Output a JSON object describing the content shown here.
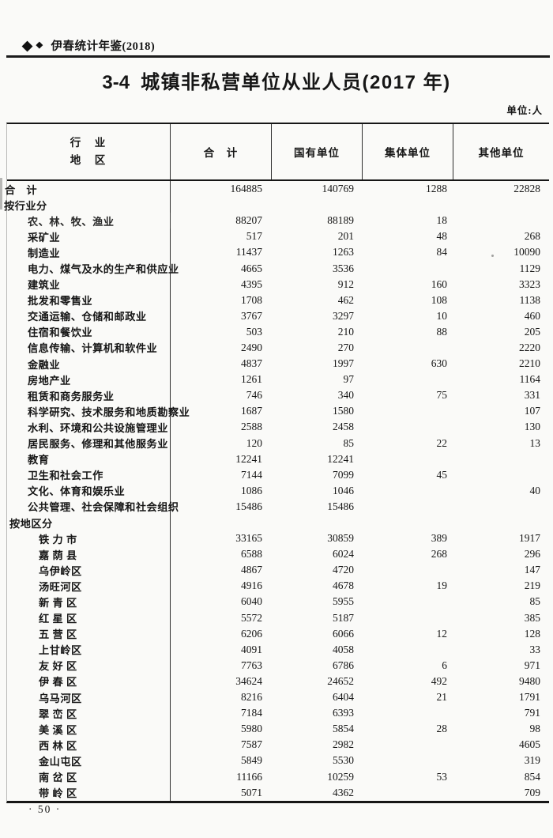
{
  "page": {
    "header": {
      "diamond_big": "◆",
      "diamond_small": "◆",
      "yearbook": "伊春统计年鉴(2018)"
    },
    "title": {
      "number": "3-4",
      "text": "城镇非私营单位从业人员(2017 年)"
    },
    "unit_label": "单位:人",
    "footer_page_number": "· 50 ·"
  },
  "table": {
    "row_header": {
      "line1": "行　业",
      "line2": "地　区"
    },
    "columns": [
      "合　计",
      "国有单位",
      "集体单位",
      "其他单位"
    ],
    "rows": [
      {
        "label": "合　计",
        "indent": 0,
        "values": [
          "164885",
          "140769",
          "1288",
          "22828"
        ]
      },
      {
        "label": "按行业分",
        "indent": 0,
        "values": [
          "",
          "",
          "",
          ""
        ]
      },
      {
        "label": "农、林、牧、渔业",
        "indent": 1,
        "values": [
          "88207",
          "88189",
          "18",
          ""
        ]
      },
      {
        "label": "采矿业",
        "indent": 1,
        "values": [
          "517",
          "201",
          "48",
          "268"
        ]
      },
      {
        "label": "制造业",
        "indent": 1,
        "values": [
          "11437",
          "1263",
          "84",
          "10090"
        ]
      },
      {
        "label": "电力、煤气及水的生产和供应业",
        "indent": 1,
        "values": [
          "4665",
          "3536",
          "",
          "1129"
        ]
      },
      {
        "label": "建筑业",
        "indent": 1,
        "values": [
          "4395",
          "912",
          "160",
          "3323"
        ]
      },
      {
        "label": "批发和零售业",
        "indent": 1,
        "values": [
          "1708",
          "462",
          "108",
          "1138"
        ]
      },
      {
        "label": "交通运输、仓储和邮政业",
        "indent": 1,
        "values": [
          "3767",
          "3297",
          "10",
          "460"
        ]
      },
      {
        "label": "住宿和餐饮业",
        "indent": 1,
        "values": [
          "503",
          "210",
          "88",
          "205"
        ]
      },
      {
        "label": "信息传输、计算机和软件业",
        "indent": 1,
        "values": [
          "2490",
          "270",
          "",
          "2220"
        ]
      },
      {
        "label": "金融业",
        "indent": 1,
        "values": [
          "4837",
          "1997",
          "630",
          "2210"
        ]
      },
      {
        "label": "房地产业",
        "indent": 1,
        "values": [
          "1261",
          "97",
          "",
          "1164"
        ]
      },
      {
        "label": "租赁和商务服务业",
        "indent": 1,
        "values": [
          "746",
          "340",
          "75",
          "331"
        ]
      },
      {
        "label": "科学研究、技术服务和地质勘察业",
        "indent": 1,
        "values": [
          "1687",
          "1580",
          "",
          "107"
        ]
      },
      {
        "label": "水利、环境和公共设施管理业",
        "indent": 1,
        "values": [
          "2588",
          "2458",
          "",
          "130"
        ]
      },
      {
        "label": "居民服务、修理和其他服务业",
        "indent": 1,
        "values": [
          "120",
          "85",
          "22",
          "13"
        ]
      },
      {
        "label": "教育",
        "indent": 1,
        "values": [
          "12241",
          "12241",
          "",
          ""
        ]
      },
      {
        "label": "卫生和社会工作",
        "indent": 1,
        "values": [
          "7144",
          "7099",
          "45",
          ""
        ]
      },
      {
        "label": "文化、体育和娱乐业",
        "indent": 1,
        "values": [
          "1086",
          "1046",
          "",
          "40"
        ]
      },
      {
        "label": "公共管理、社会保障和社会组织",
        "indent": 1,
        "values": [
          "15486",
          "15486",
          "",
          ""
        ]
      },
      {
        "label": "按地区分",
        "indent": 0,
        "values": [
          "",
          "",
          "",
          ""
        ]
      },
      {
        "label": "铁 力 市",
        "indent": 2,
        "values": [
          "33165",
          "30859",
          "389",
          "1917"
        ]
      },
      {
        "label": "嘉 荫 县",
        "indent": 2,
        "values": [
          "6588",
          "6024",
          "268",
          "296"
        ]
      },
      {
        "label": "乌伊岭区",
        "indent": 2,
        "values": [
          "4867",
          "4720",
          "",
          "147"
        ]
      },
      {
        "label": "汤旺河区",
        "indent": 2,
        "values": [
          "4916",
          "4678",
          "19",
          "219"
        ]
      },
      {
        "label": "新 青 区",
        "indent": 2,
        "values": [
          "6040",
          "5955",
          "",
          "85"
        ]
      },
      {
        "label": "红 星 区",
        "indent": 2,
        "values": [
          "5572",
          "5187",
          "",
          "385"
        ]
      },
      {
        "label": "五 营 区",
        "indent": 2,
        "values": [
          "6206",
          "6066",
          "12",
          "128"
        ]
      },
      {
        "label": "上甘岭区",
        "indent": 2,
        "values": [
          "4091",
          "4058",
          "",
          "33"
        ]
      },
      {
        "label": "友 好 区",
        "indent": 2,
        "values": [
          "7763",
          "6786",
          "6",
          "971"
        ]
      },
      {
        "label": "伊 春 区",
        "indent": 2,
        "values": [
          "34624",
          "24652",
          "492",
          "9480"
        ]
      },
      {
        "label": "乌马河区",
        "indent": 2,
        "values": [
          "8216",
          "6404",
          "21",
          "1791"
        ]
      },
      {
        "label": "翠 峦 区",
        "indent": 2,
        "values": [
          "7184",
          "6393",
          "",
          "791"
        ]
      },
      {
        "label": "美 溪 区",
        "indent": 2,
        "values": [
          "5980",
          "5854",
          "28",
          "98"
        ]
      },
      {
        "label": "西 林 区",
        "indent": 2,
        "values": [
          "7587",
          "2982",
          "",
          "4605"
        ]
      },
      {
        "label": "金山屯区",
        "indent": 2,
        "values": [
          "5849",
          "5530",
          "",
          "319"
        ]
      },
      {
        "label": "南 岔 区",
        "indent": 2,
        "values": [
          "11166",
          "10259",
          "53",
          "854"
        ]
      },
      {
        "label": "带 岭 区",
        "indent": 2,
        "values": [
          "5071",
          "4362",
          "",
          "709"
        ]
      }
    ]
  }
}
